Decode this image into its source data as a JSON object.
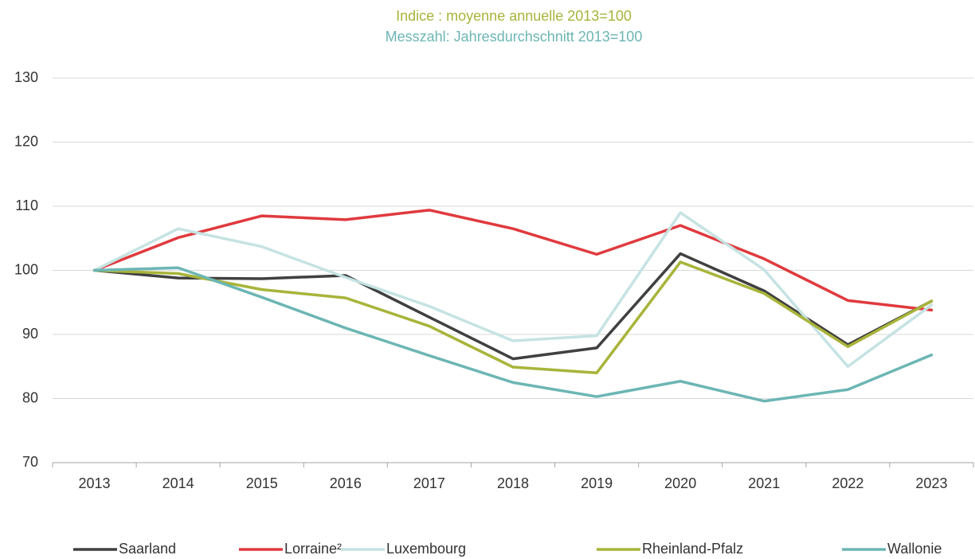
{
  "chart_data": {
    "type": "line",
    "title": "Indice : moyenne annuelle 2013=100",
    "title_color": "#a8b43a",
    "subtitle": "Messzahl: Jahresdurchschnitt 2013=100",
    "subtitle_color": "#6cb6b4",
    "categories": [
      "2013",
      "2014",
      "2015",
      "2016",
      "2017",
      "2018",
      "2019",
      "2020",
      "2021",
      "2022",
      "2023"
    ],
    "series": [
      {
        "name": "Saarland",
        "color": "#404040",
        "values": [
          100,
          98.8,
          98.7,
          99.2,
          92.7,
          86.2,
          87.9,
          102.6,
          96.8,
          88.4,
          95.2
        ]
      },
      {
        "name": "Lorraine²",
        "color": "#e03a3e",
        "values": [
          100,
          105.1,
          108.5,
          107.9,
          109.4,
          106.5,
          102.5,
          107.0,
          101.8,
          95.3,
          93.8
        ]
      },
      {
        "name": "Luxembourg",
        "color": "#c5e3e2",
        "values": [
          100,
          106.5,
          103.7,
          98.9,
          94.4,
          89.0,
          89.8,
          109.0,
          100.1,
          85.0,
          94.6
        ]
      },
      {
        "name": "Rheinland-Pfalz",
        "color": "#a8b43a",
        "values": [
          100,
          99.5,
          97.0,
          95.7,
          91.3,
          84.9,
          84.0,
          101.3,
          96.4,
          88.1,
          95.2
        ]
      },
      {
        "name": "Wallonie",
        "color": "#6cb6b4",
        "values": [
          100,
          100.4,
          95.8,
          91.0,
          86.7,
          82.5,
          80.3,
          82.7,
          79.6,
          81.4,
          86.8
        ]
      }
    ],
    "ylim": [
      70,
      130
    ],
    "yticks": [
      70,
      80,
      90,
      100,
      110,
      120,
      130
    ],
    "grid": true,
    "legend": "bottom"
  }
}
